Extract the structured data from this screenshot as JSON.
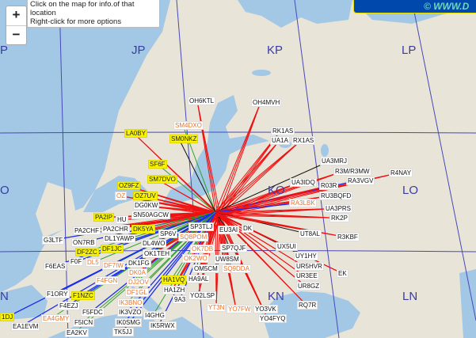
{
  "tooltip": {
    "line1": "Click on the map for info.of that location",
    "line2": "Right-click for more options"
  },
  "zoom": {
    "in_label": "+",
    "out_label": "−"
  },
  "banner": {
    "text": "© WWW.D"
  },
  "colors": {
    "sea": "#a3c8e6",
    "land": "#e8e4d8",
    "grid": "#4848b8",
    "path_red": "#ee1111",
    "path_blue": "#1a2cf0",
    "path_green": "#2ea02e",
    "path_black": "#111111"
  },
  "grid_squares": [
    "JP",
    "KP",
    "LP",
    "O",
    "KO",
    "LO",
    "N",
    "KN",
    "LN",
    "P"
  ],
  "stations": [
    {
      "call": "OH6KTL",
      "style": "normal",
      "path": "red"
    },
    {
      "call": "OH4MVH",
      "style": "normal",
      "path": "red"
    },
    {
      "call": "SM4DXO",
      "style": "orange",
      "path": "green"
    },
    {
      "call": "LA0BY",
      "style": "yellow",
      "path": "red"
    },
    {
      "call": "SM0NKZ",
      "style": "yellow",
      "path": "black"
    },
    {
      "call": "RK1AS",
      "style": "normal",
      "path": "red"
    },
    {
      "call": "UA1A",
      "style": "normal",
      "path": "red"
    },
    {
      "call": "RX1AS",
      "style": "normal",
      "path": "red"
    },
    {
      "call": "SF6F",
      "style": "yellow",
      "path": "green"
    },
    {
      "call": "SM7DVO",
      "style": "yellow",
      "path": "red"
    },
    {
      "call": "OZ9FZ",
      "style": "yellow",
      "path": "red"
    },
    {
      "call": "OZ",
      "style": "orange",
      "path": "red"
    },
    {
      "call": "OZ7UV",
      "style": "yellow",
      "path": "red"
    },
    {
      "call": "DG0KW",
      "style": "normal",
      "path": "red"
    },
    {
      "call": "SN50AGCW",
      "style": "normal",
      "path": "red"
    },
    {
      "call": "UA3MRJ",
      "style": "normal",
      "path": "black"
    },
    {
      "call": "R3M/R3MW",
      "style": "normal",
      "path": "red"
    },
    {
      "call": "R4NAY",
      "style": "normal",
      "path": "red"
    },
    {
      "call": "RA3VGV",
      "style": "normal",
      "path": "blue"
    },
    {
      "call": "UA3IDQ",
      "style": "normal",
      "path": "red"
    },
    {
      "call": "R03R",
      "style": "normal",
      "path": "red"
    },
    {
      "call": "RU3BQFD",
      "style": "normal",
      "path": "red"
    },
    {
      "call": "RA3LBK",
      "style": "orange",
      "path": "blue"
    },
    {
      "call": "UA3PRS",
      "style": "normal",
      "path": "red"
    },
    {
      "call": "RK2P",
      "style": "normal",
      "path": "red"
    },
    {
      "call": "UT8AL",
      "style": "normal",
      "path": "black"
    },
    {
      "call": "R3KBF",
      "style": "normal",
      "path": "red"
    },
    {
      "call": "UX5UI",
      "style": "normal",
      "path": "blue"
    },
    {
      "call": "UY1HY",
      "style": "normal",
      "path": "black"
    },
    {
      "call": "UR5HVR",
      "style": "normal",
      "path": "red"
    },
    {
      "call": "UR3EE",
      "style": "normal",
      "path": "red"
    },
    {
      "call": "EK",
      "style": "normal",
      "path": "red"
    },
    {
      "call": "UR8GZ",
      "style": "normal",
      "path": "red"
    },
    {
      "call": "RQ7R",
      "style": "normal",
      "path": "red"
    },
    {
      "call": "YO3VK",
      "style": "normal",
      "path": "red"
    },
    {
      "call": "YO4FYQ",
      "style": "normal",
      "path": "red"
    },
    {
      "call": "YO7FW",
      "style": "orange",
      "path": "red"
    },
    {
      "call": "YT3N",
      "style": "orange",
      "path": "red"
    },
    {
      "call": "YO2LSP",
      "style": "normal",
      "path": "red"
    },
    {
      "call": "9A3",
      "style": "normal",
      "path": "blue"
    },
    {
      "call": "HA1ZH",
      "style": "normal",
      "path": "red"
    },
    {
      "call": "HA1VQ",
      "style": "yellow",
      "path": "green"
    },
    {
      "call": "HA9AL",
      "style": "normal",
      "path": "red"
    },
    {
      "call": "OM5CM",
      "style": "normal",
      "path": "red"
    },
    {
      "call": "UW8SM",
      "style": "normal",
      "path": "red"
    },
    {
      "call": "SP7QJF",
      "style": "normal",
      "path": "black"
    },
    {
      "call": "SQ9DDA",
      "style": "orange",
      "path": "red"
    },
    {
      "call": "OK2WO",
      "style": "orange",
      "path": "red"
    },
    {
      "call": "OK7DB",
      "style": "orange",
      "path": "red"
    },
    {
      "call": "SP3TLJ",
      "style": "normal",
      "path": "red"
    },
    {
      "call": "EU3AI",
      "style": "normal",
      "path": "black"
    },
    {
      "call": "DK",
      "style": "normal",
      "path": "red"
    },
    {
      "call": "SP6V",
      "style": "normal",
      "path": "green"
    },
    {
      "call": "SQ8POM",
      "style": "orange",
      "path": "red"
    },
    {
      "call": "DL4WO",
      "style": "normal",
      "path": "green"
    },
    {
      "call": "OK1TEH",
      "style": "normal",
      "path": "red"
    },
    {
      "call": "DK1FG",
      "style": "normal",
      "path": "red"
    },
    {
      "call": "DF7IW",
      "style": "orange",
      "path": "green"
    },
    {
      "call": "DK0A",
      "style": "orange",
      "path": "red"
    },
    {
      "call": "DJ2OV",
      "style": "orange",
      "path": "green"
    },
    {
      "call": "DF1GL",
      "style": "orange",
      "path": "green"
    },
    {
      "call": "F4FGN",
      "style": "orange",
      "path": "blue"
    },
    {
      "call": "F6EAS",
      "style": "normal",
      "path": "blue"
    },
    {
      "call": "G3LTF",
      "style": "normal",
      "path": "blue"
    },
    {
      "call": "ON7RB",
      "style": "normal",
      "path": "blue"
    },
    {
      "call": "PA2IP",
      "style": "yellow",
      "path": "red"
    },
    {
      "call": "HU",
      "style": "normal",
      "path": "red"
    },
    {
      "call": "PA2CHF",
      "style": "normal",
      "path": "red"
    },
    {
      "call": "PA2CHR",
      "style": "normal",
      "path": "red"
    },
    {
      "call": "DL1YAWP",
      "style": "normal",
      "path": "red"
    },
    {
      "call": "DF1JC",
      "style": "yellow",
      "path": "green"
    },
    {
      "call": "DF2ZC",
      "style": "yellow",
      "path": "green"
    },
    {
      "call": "DL5",
      "style": "orange",
      "path": "green"
    },
    {
      "call": "DK5YA",
      "style": "yellow",
      "path": "green"
    },
    {
      "call": "F0F",
      "style": "normal",
      "path": "blue"
    },
    {
      "call": "F1NZC",
      "style": "yellow",
      "path": "blue"
    },
    {
      "call": "IK3BNO",
      "style": "orange",
      "path": "green"
    },
    {
      "call": "IK3VZO",
      "style": "normal",
      "path": "blue"
    },
    {
      "call": "I4GHG",
      "style": "normal",
      "path": "green"
    },
    {
      "call": "IK5RWX",
      "style": "normal",
      "path": "blue"
    },
    {
      "call": "TK5JJ",
      "style": "normal",
      "path": "blue"
    },
    {
      "call": "IK0SMG",
      "style": "normal",
      "path": "blue"
    },
    {
      "call": "F1ORY",
      "style": "normal",
      "path": "blue"
    },
    {
      "call": "F4EZJ",
      "style": "normal",
      "path": "blue"
    },
    {
      "call": "F5FDC",
      "style": "normal",
      "path": "blue"
    },
    {
      "call": "F5ICN",
      "style": "normal",
      "path": "green"
    },
    {
      "call": "EA4GMY",
      "style": "orange",
      "path": "green"
    },
    {
      "call": "EA1EVM",
      "style": "normal",
      "path": "blue"
    },
    {
      "call": "1DJ",
      "style": "yellow",
      "path": "blue"
    },
    {
      "call": "EA2KV",
      "style": "normal",
      "path": "green"
    }
  ]
}
